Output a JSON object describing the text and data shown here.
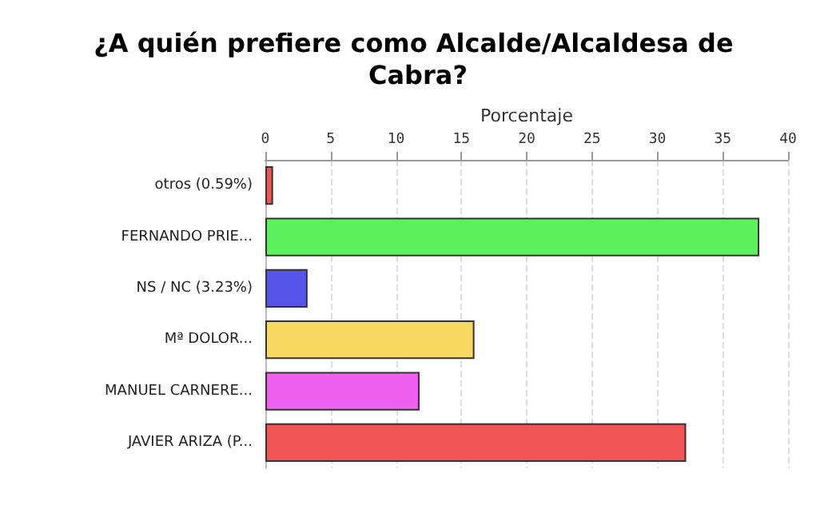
{
  "chart_data": {
    "type": "bar",
    "orientation": "horizontal",
    "title": "¿A quién prefiere como Alcalde/Alcaldesa de Cabra?",
    "xlabel": "Porcentaje",
    "categories": [
      "otros (0.59%)",
      "FERNANDO PRIE...",
      "NS / NC (3.23%)",
      "Mª DOLOR...",
      "MANUEL CARNERE...",
      "JAVIER ARIZA (P..."
    ],
    "values": [
      0.59,
      37.8,
      3.23,
      16.0,
      11.8,
      32.2
    ],
    "colors": [
      "#f05454",
      "#5cf05c",
      "#5454e8",
      "#f8d860",
      "#f060f0",
      "#f05454"
    ],
    "xlim": [
      0,
      40
    ],
    "xticks": [
      0,
      5,
      10,
      15,
      20,
      25,
      30,
      35,
      40
    ],
    "grid": "x"
  }
}
